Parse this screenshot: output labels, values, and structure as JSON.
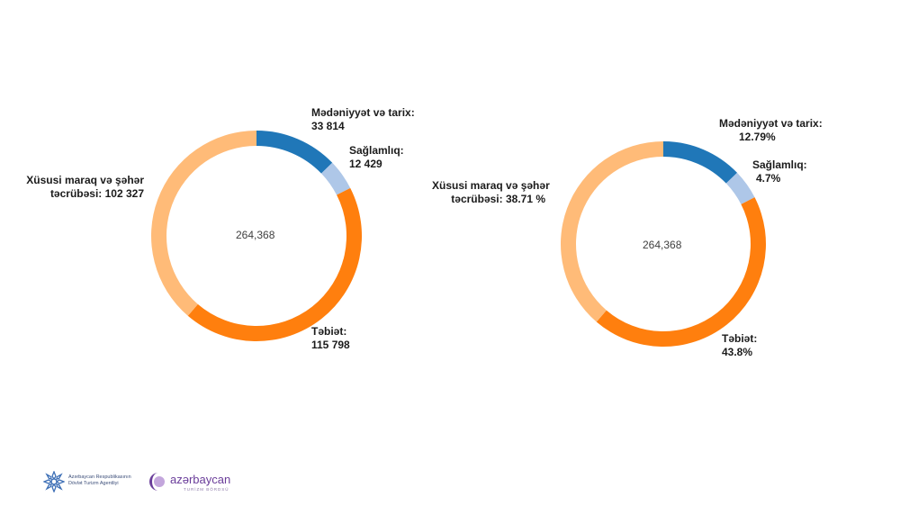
{
  "chart_data": [
    {
      "type": "pie",
      "variant": "donut",
      "center_label": "264,368",
      "slices": [
        {
          "name": "Mədəniyyət və tarix",
          "value": 33814,
          "color": "#2077b8",
          "label_line1": "Mədəniyyət və tarix:",
          "label_line2": "33 814"
        },
        {
          "name": "Sağlamlıq",
          "value": 12429,
          "color": "#aec7e8",
          "label_line1": "Sağlamlıq:",
          "label_line2": "12 429"
        },
        {
          "name": "Təbiət",
          "value": 115798,
          "color": "#ff7f0e",
          "label_line1": "Təbiət:",
          "label_line2": "115 798"
        },
        {
          "name": "Xüsusi maraq və şəhər təcrübəsi",
          "value": 102327,
          "color": "#ffbb78",
          "label_line1": "Xüsusi maraq və şəhər",
          "label_line2": "təcrübəsi: 102 327"
        }
      ]
    },
    {
      "type": "pie",
      "variant": "donut",
      "center_label": "264,368",
      "slices": [
        {
          "name": "Mədəniyyət və tarix",
          "value": 12.79,
          "color": "#2077b8",
          "label_line1": "Mədəniyyət və tarix:",
          "label_line2": "12.79%"
        },
        {
          "name": "Sağlamlıq",
          "value": 4.7,
          "color": "#aec7e8",
          "label_line1": "Sağlamlıq:",
          "label_line2": "4.7%"
        },
        {
          "name": "Təbiət",
          "value": 43.8,
          "color": "#ff7f0e",
          "label_line1": "Təbiət:",
          "label_line2": "43.8%"
        },
        {
          "name": "Xüsusi maraq və şəhər təcrübəsi",
          "value": 38.71,
          "color": "#ffbb78",
          "label_line1": "Xüsusi maraq və şəhər",
          "label_line2": "təcrübəsi: 38.71 %"
        }
      ]
    }
  ],
  "footer": {
    "logo1_line1": "Azərbaycan Respublikasının",
    "logo1_line2": "Dövlət Turizm Agentliyi",
    "logo2_name": "azərbaycan",
    "logo2_sub": "TURİZM BÖRDSÜ"
  },
  "colors": {
    "footer_blue": "#3d6fb6",
    "footer_purple": "#6a3d9a"
  }
}
